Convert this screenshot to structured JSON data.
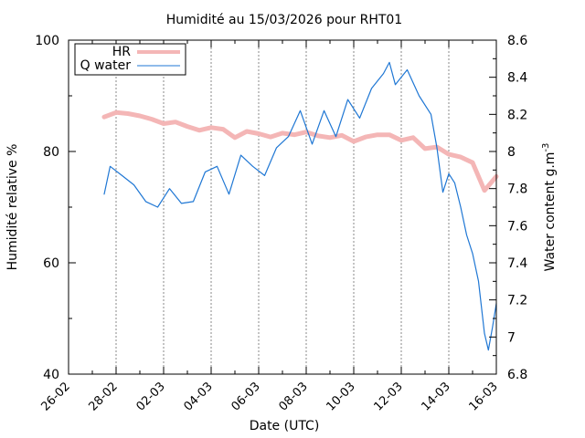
{
  "chart_data": {
    "type": "line",
    "title": "Humidité au 15/03/2026 pour RHT01",
    "xlabel": "Date (UTC)",
    "ylabel_left": "Humidité relative %",
    "ylabel_right_base": "Water content g.m",
    "ylabel_right_sup": "-3",
    "x_range_days": [
      "26-02",
      "16-03"
    ],
    "ylim_left": [
      40,
      100
    ],
    "ylim_right": [
      6.8,
      8.6
    ],
    "x_ticks": [
      "26-02",
      "28-02",
      "02-03",
      "04-03",
      "06-03",
      "08-03",
      "10-03",
      "12-03",
      "14-03",
      "16-03"
    ],
    "y_ticks_left": [
      "40",
      "60",
      "80",
      "100"
    ],
    "y_ticks_right": [
      "6.8",
      "7",
      "7.2",
      "7.4",
      "7.6",
      "7.8",
      "8",
      "8.2",
      "8.4",
      "8.6"
    ],
    "grid": "vertical dashed at major x ticks",
    "legend_position": "top-left",
    "series": [
      {
        "name": "HR",
        "axis": "left",
        "color": "#f4b6b6",
        "points": [
          [
            "2026-02-27 12:00",
            86.2
          ],
          [
            "2026-02-28 00:00",
            87.0
          ],
          [
            "2026-02-28 12:00",
            86.8
          ],
          [
            "2026-03-01 00:00",
            86.4
          ],
          [
            "2026-03-01 12:00",
            85.8
          ],
          [
            "2026-03-02 00:00",
            85.0
          ],
          [
            "2026-03-02 12:00",
            85.3
          ],
          [
            "2026-03-03 00:00",
            84.5
          ],
          [
            "2026-03-03 12:00",
            83.8
          ],
          [
            "2026-03-04 00:00",
            84.3
          ],
          [
            "2026-03-04 12:00",
            84.0
          ],
          [
            "2026-03-05 00:00",
            82.5
          ],
          [
            "2026-03-05 12:00",
            83.6
          ],
          [
            "2026-03-06 00:00",
            83.2
          ],
          [
            "2026-03-06 12:00",
            82.6
          ],
          [
            "2026-03-07 00:00",
            83.3
          ],
          [
            "2026-03-07 12:00",
            83.0
          ],
          [
            "2026-03-08 00:00",
            83.5
          ],
          [
            "2026-03-08 12:00",
            82.8
          ],
          [
            "2026-03-09 00:00",
            82.5
          ],
          [
            "2026-03-09 12:00",
            82.9
          ],
          [
            "2026-03-10 00:00",
            81.8
          ],
          [
            "2026-03-10 12:00",
            82.6
          ],
          [
            "2026-03-11 00:00",
            83.0
          ],
          [
            "2026-03-11 12:00",
            83.0
          ],
          [
            "2026-03-12 00:00",
            82.0
          ],
          [
            "2026-03-12 12:00",
            82.5
          ],
          [
            "2026-03-13 00:00",
            80.5
          ],
          [
            "2026-03-13 12:00",
            80.8
          ],
          [
            "2026-03-14 00:00",
            79.5
          ],
          [
            "2026-03-14 12:00",
            79.0
          ],
          [
            "2026-03-15 00:00",
            78.0
          ],
          [
            "2026-03-15 12:00",
            73.0
          ],
          [
            "2026-03-16 00:00",
            75.5
          ]
        ]
      },
      {
        "name": "Q water",
        "axis": "right",
        "color": "#1f77d4",
        "points": [
          [
            "2026-02-27 12:00",
            7.77
          ],
          [
            "2026-02-27 18:00",
            7.92
          ],
          [
            "2026-02-28 06:00",
            7.87
          ],
          [
            "2026-02-28 18:00",
            7.82
          ],
          [
            "2026-03-01 06:00",
            7.73
          ],
          [
            "2026-03-01 18:00",
            7.7
          ],
          [
            "2026-03-02 06:00",
            7.8
          ],
          [
            "2026-03-02 18:00",
            7.72
          ],
          [
            "2026-03-03 06:00",
            7.73
          ],
          [
            "2026-03-03 18:00",
            7.89
          ],
          [
            "2026-03-04 06:00",
            7.92
          ],
          [
            "2026-03-04 18:00",
            7.77
          ],
          [
            "2026-03-05 06:00",
            7.98
          ],
          [
            "2026-03-05 18:00",
            7.92
          ],
          [
            "2026-03-06 06:00",
            7.87
          ],
          [
            "2026-03-06 18:00",
            8.02
          ],
          [
            "2026-03-07 06:00",
            8.08
          ],
          [
            "2026-03-07 18:00",
            8.22
          ],
          [
            "2026-03-08 06:00",
            8.04
          ],
          [
            "2026-03-08 18:00",
            8.22
          ],
          [
            "2026-03-09 06:00",
            8.08
          ],
          [
            "2026-03-09 18:00",
            8.28
          ],
          [
            "2026-03-10 06:00",
            8.18
          ],
          [
            "2026-03-10 18:00",
            8.34
          ],
          [
            "2026-03-11 06:00",
            8.42
          ],
          [
            "2026-03-11 12:00",
            8.48
          ],
          [
            "2026-03-11 18:00",
            8.36
          ],
          [
            "2026-03-12 06:00",
            8.44
          ],
          [
            "2026-03-12 18:00",
            8.3
          ],
          [
            "2026-03-13 06:00",
            8.2
          ],
          [
            "2026-03-13 12:00",
            8.02
          ],
          [
            "2026-03-13 18:00",
            7.78
          ],
          [
            "2026-03-14 00:00",
            7.88
          ],
          [
            "2026-03-14 06:00",
            7.83
          ],
          [
            "2026-03-14 12:00",
            7.7
          ],
          [
            "2026-03-14 18:00",
            7.55
          ],
          [
            "2026-03-15 00:00",
            7.45
          ],
          [
            "2026-03-15 06:00",
            7.3
          ],
          [
            "2026-03-15 12:00",
            7.02
          ],
          [
            "2026-03-15 16:00",
            6.93
          ],
          [
            "2026-03-15 20:00",
            7.05
          ],
          [
            "2026-03-16 00:00",
            7.18
          ]
        ]
      }
    ]
  }
}
